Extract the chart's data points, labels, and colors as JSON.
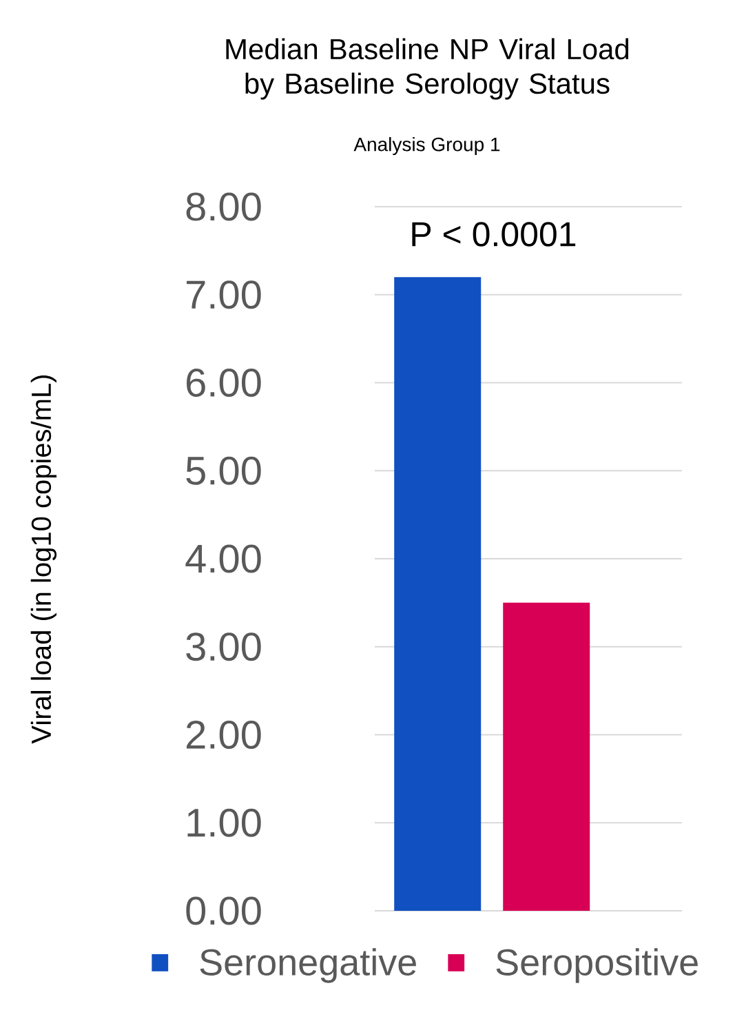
{
  "chart_data": {
    "type": "bar",
    "title": "Median Baseline NP Viral Load by Baseline Serology Status",
    "subtitle": "Analysis Group 1",
    "ylabel": "Viral load (in log10 copies/mL)",
    "categories": [
      null
    ],
    "series": [
      {
        "name": "Seronegative",
        "color": "#1150c0",
        "values": [
          7.2
        ]
      },
      {
        "name": "Seropositive",
        "color": "#d80055",
        "values": [
          3.5
        ]
      }
    ],
    "ylim": [
      0,
      8
    ],
    "yticks": [
      {
        "value": 0,
        "label": "0.00"
      },
      {
        "value": 1,
        "label": "1.00"
      },
      {
        "value": 2,
        "label": "2.00"
      },
      {
        "value": 3,
        "label": "3.00"
      },
      {
        "value": 4,
        "label": "4.00"
      },
      {
        "value": 5,
        "label": "5.00"
      },
      {
        "value": 6,
        "label": "6.00"
      },
      {
        "value": 7,
        "label": "7.00"
      },
      {
        "value": 8,
        "label": "8.00"
      }
    ],
    "grid": "y",
    "legend": "bottom",
    "annotations": [
      "P < 0.0001"
    ]
  }
}
